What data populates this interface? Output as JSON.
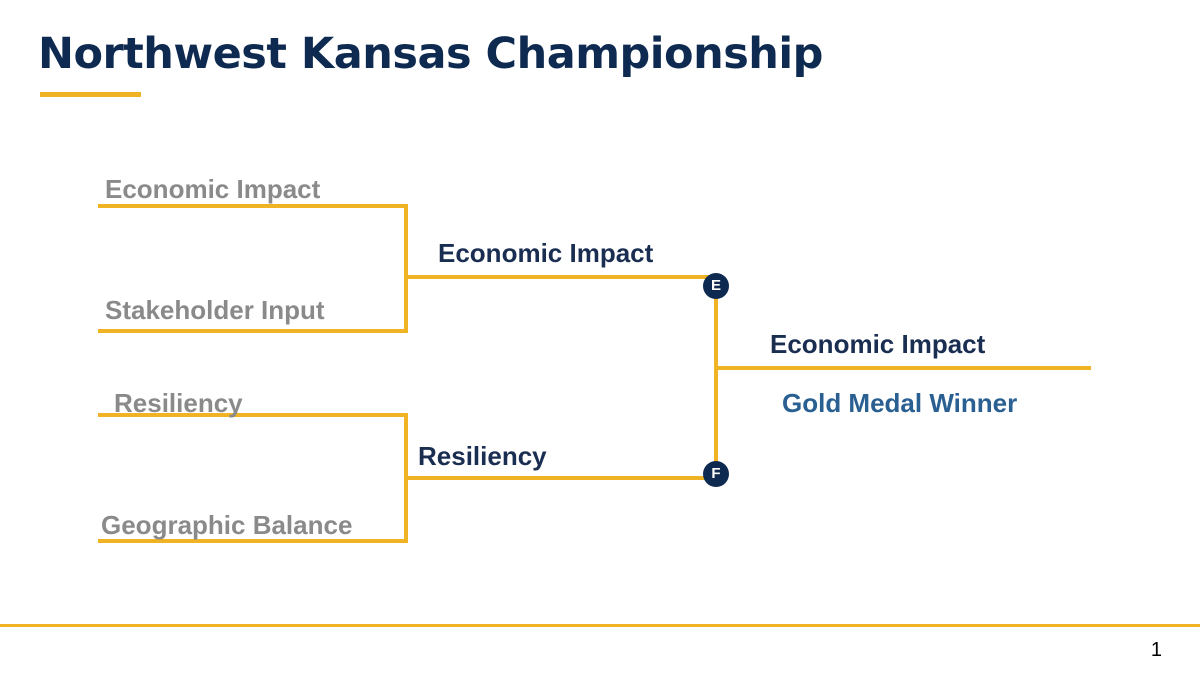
{
  "slide": {
    "title": "Northwest Kansas Championship",
    "page_number": "1"
  },
  "colors": {
    "title": "#0f2a50",
    "accent": "#f0b323",
    "entrant_text": "#8a8a8a",
    "round_text": "#1a2e52",
    "winner_text": "#2a5f92",
    "node_fill": "#0f2a50"
  },
  "bracket": {
    "round1": [
      "Economic Impact",
      "Stakeholder Input",
      "Resiliency",
      "Geographic Balance"
    ],
    "round2": [
      "Economic Impact",
      "Resiliency"
    ],
    "semifinal_nodes": [
      "E",
      "F"
    ],
    "final": {
      "winner": "Economic Impact",
      "caption": "Gold Medal Winner"
    }
  }
}
